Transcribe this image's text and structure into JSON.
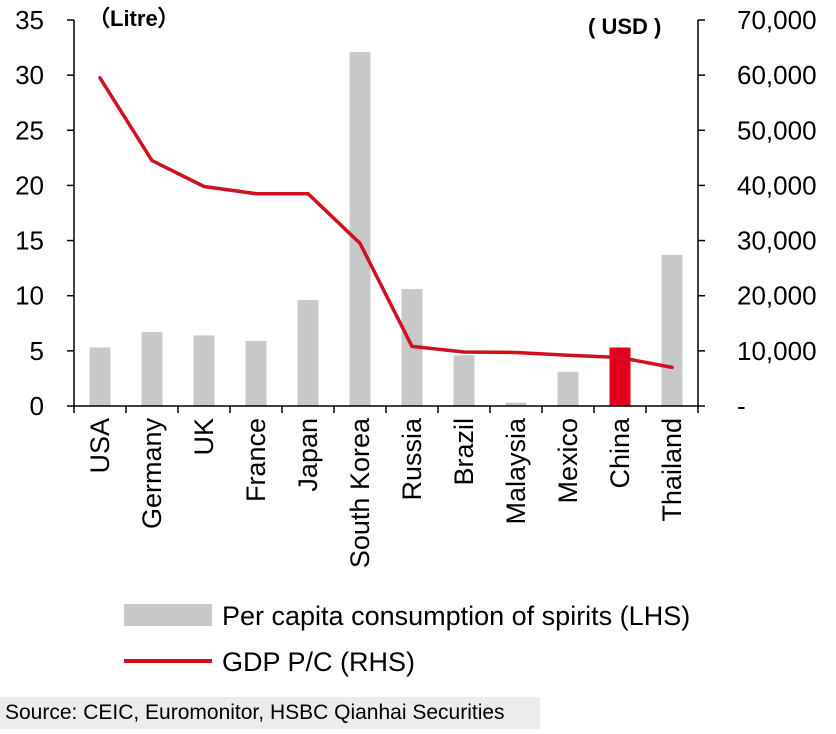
{
  "chart_data": {
    "type": "bar",
    "categories": [
      "USA",
      "Germany",
      "UK",
      "France",
      "Japan",
      "South Korea",
      "Russia",
      "Brazil",
      "Malaysia",
      "Mexico",
      "China",
      "Thailand"
    ],
    "series": [
      {
        "name": "Per capita consumption of spirits (LHS)",
        "type": "bar",
        "axis": "left",
        "values": [
          5.3,
          6.7,
          6.4,
          5.9,
          9.6,
          32.1,
          10.6,
          4.6,
          0.3,
          3.1,
          5.3,
          13.7
        ],
        "color": "#c8c8c8",
        "highlight": {
          "category": "China",
          "color": "#e2001a"
        }
      },
      {
        "name": "GDP P/C (RHS)",
        "type": "line",
        "axis": "right",
        "values": [
          59500,
          44500,
          39800,
          38500,
          38500,
          29500,
          10800,
          9800,
          9700,
          9200,
          8800,
          7000
        ],
        "color": "#d0101f"
      }
    ],
    "y_left": {
      "unit_label": "（Litre）",
      "ylim": [
        0,
        35
      ],
      "ticks": [
        0,
        5,
        10,
        15,
        20,
        25,
        30,
        35
      ],
      "tick_labels": [
        "0",
        "5",
        "10",
        "15",
        "20",
        "25",
        "30",
        "35"
      ]
    },
    "y_right": {
      "unit_label": "( USD )",
      "ylim": [
        0,
        70000
      ],
      "ticks": [
        0,
        10000,
        20000,
        30000,
        40000,
        50000,
        60000,
        70000
      ],
      "tick_labels": [
        "-",
        "10,000",
        "20,000",
        "30,000",
        "40,000",
        "50,000",
        "60,000",
        "70,000"
      ]
    },
    "legend_position": "bottom",
    "source": "Source: CEIC, Euromonitor, HSBC Qianhai Securities"
  }
}
